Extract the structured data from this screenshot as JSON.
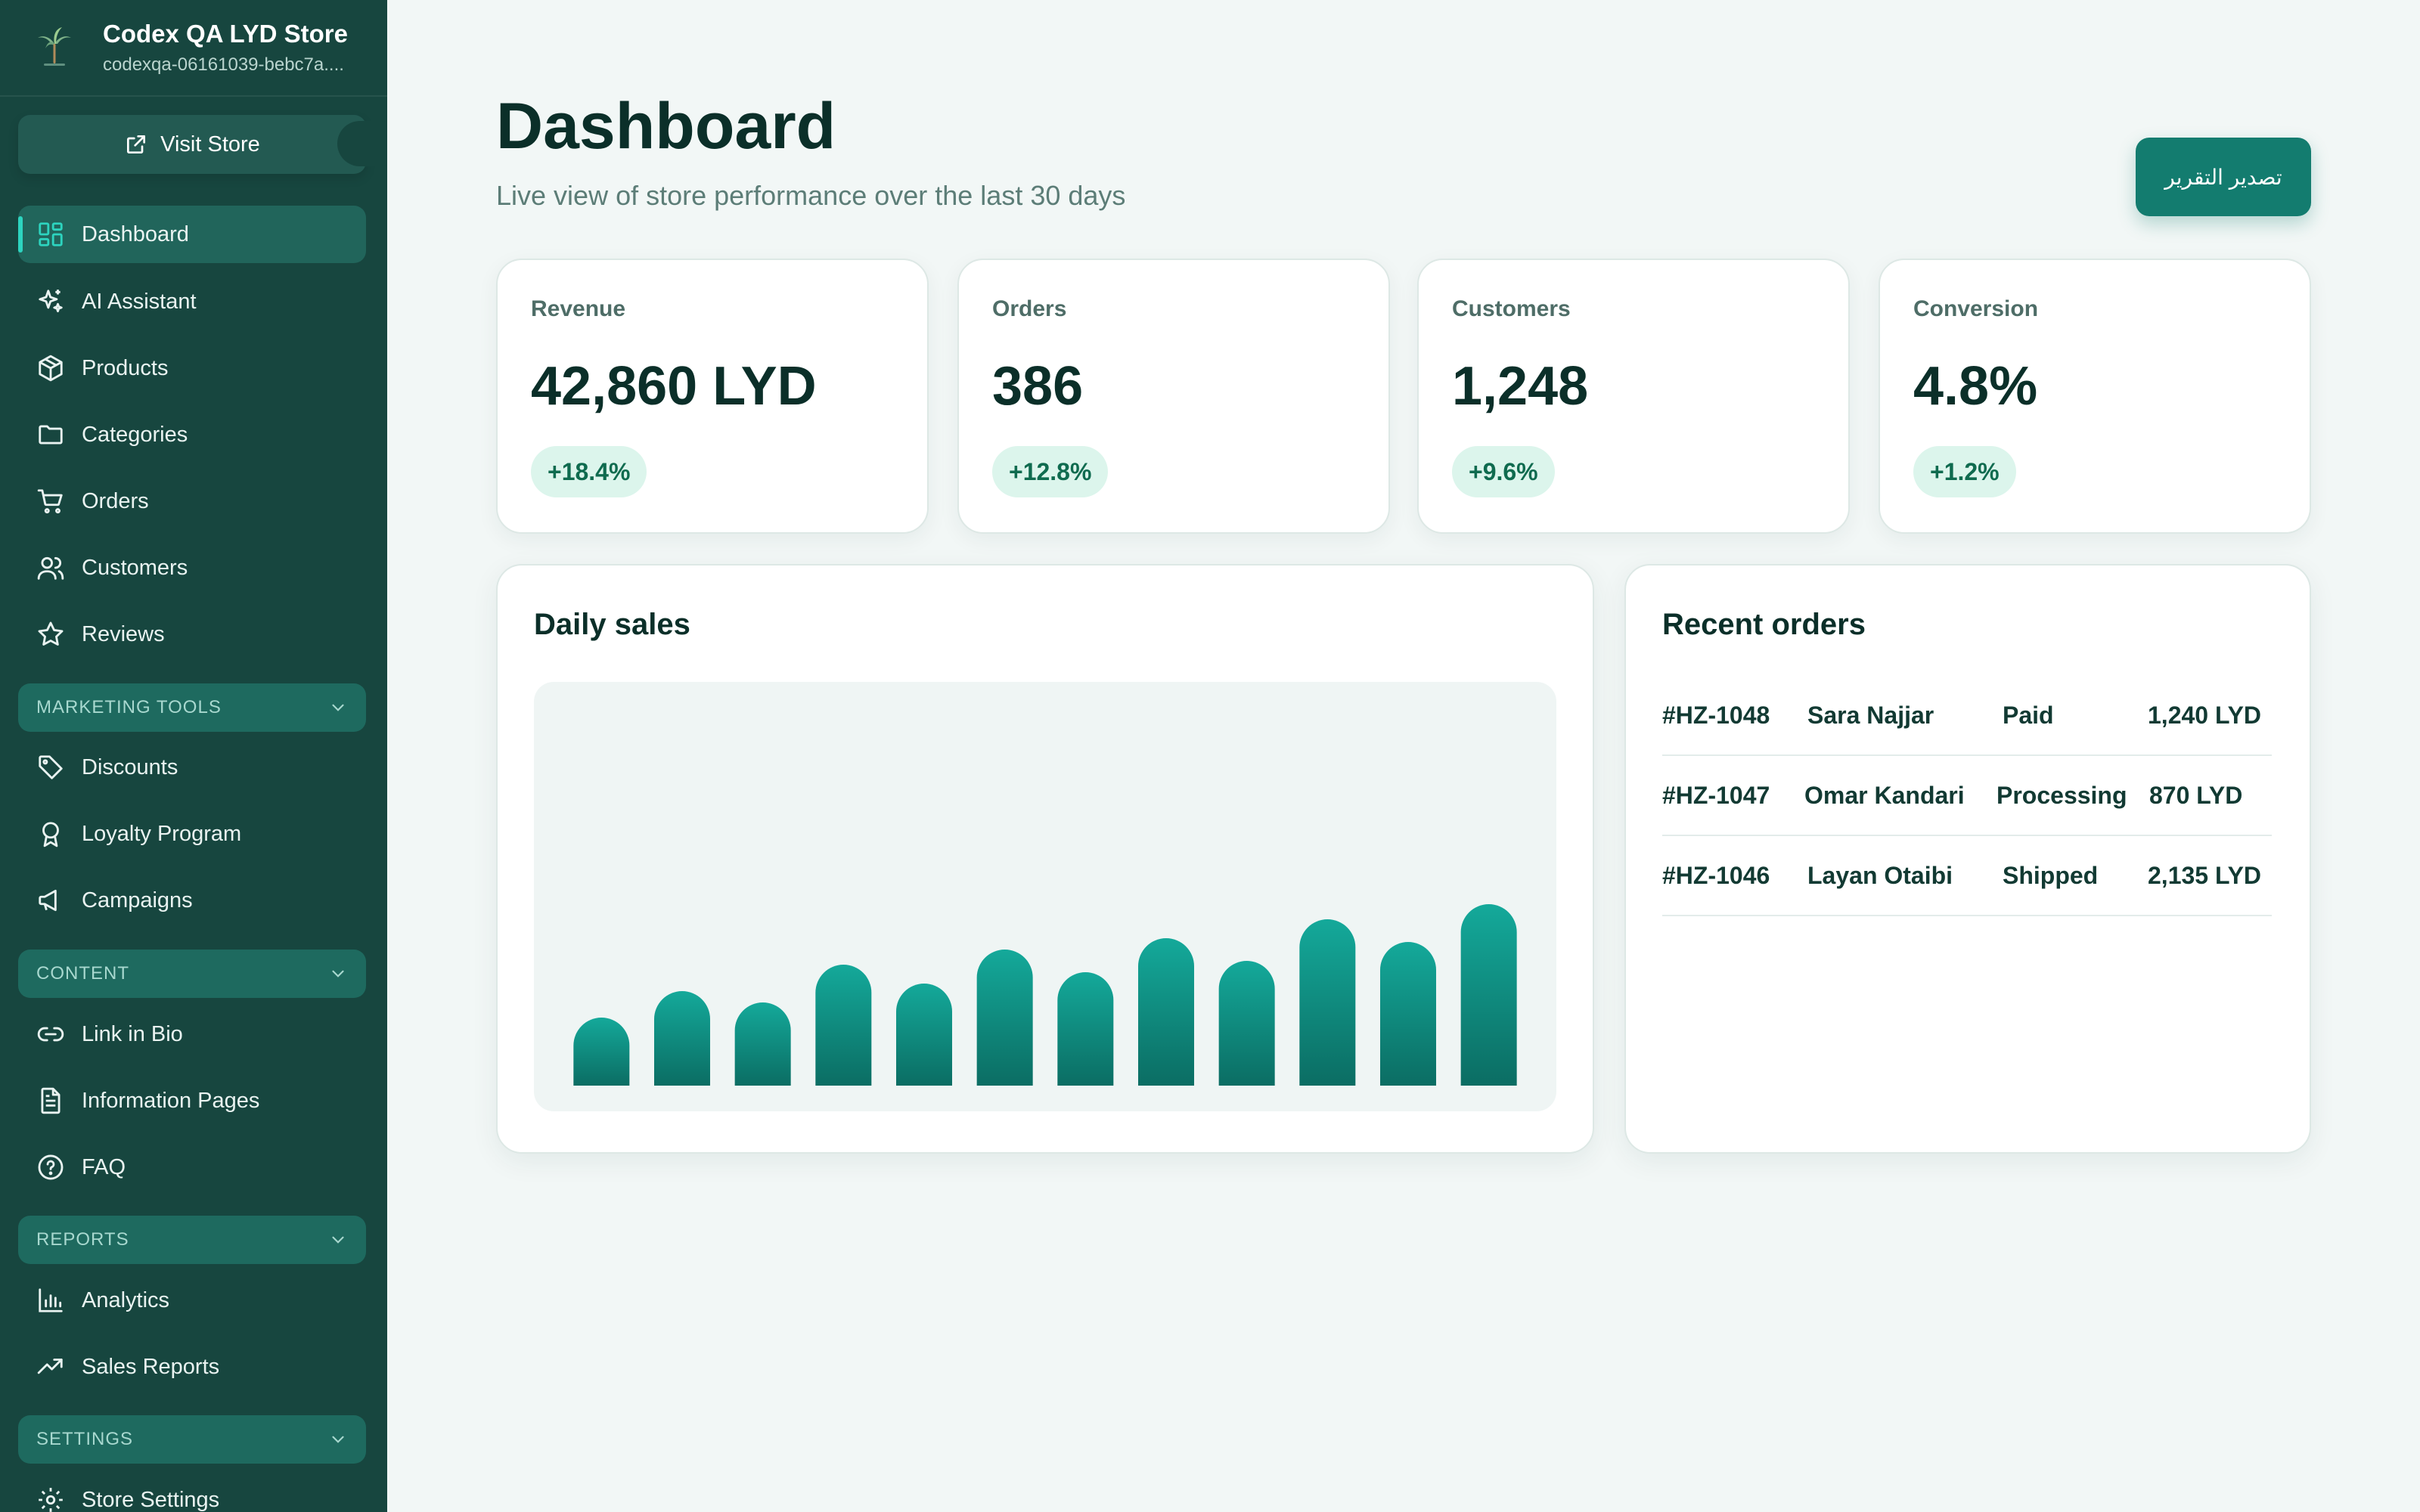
{
  "store": {
    "name": "Codex QA LYD Store",
    "slug": "codexqa-06161039-bebc7a...."
  },
  "sidebar": {
    "visit_store_label": "Visit Store",
    "primary": [
      {
        "label": "Dashboard",
        "icon": "grid-icon",
        "active": true
      },
      {
        "label": "AI Assistant",
        "icon": "sparkles-icon"
      },
      {
        "label": "Products",
        "icon": "box-icon"
      },
      {
        "label": "Categories",
        "icon": "folder-icon"
      },
      {
        "label": "Orders",
        "icon": "cart-icon"
      },
      {
        "label": "Customers",
        "icon": "users-icon"
      },
      {
        "label": "Reviews",
        "icon": "star-icon"
      }
    ],
    "sections": [
      {
        "title": "MARKETING TOOLS",
        "items": [
          {
            "label": "Discounts",
            "icon": "tag-icon"
          },
          {
            "label": "Loyalty Program",
            "icon": "award-icon"
          },
          {
            "label": "Campaigns",
            "icon": "megaphone-icon"
          }
        ]
      },
      {
        "title": "CONTENT",
        "items": [
          {
            "label": "Link in Bio",
            "icon": "link-icon"
          },
          {
            "label": "Information Pages",
            "icon": "document-icon"
          },
          {
            "label": "FAQ",
            "icon": "help-circle-icon"
          }
        ]
      },
      {
        "title": "REPORTS",
        "items": [
          {
            "label": "Analytics",
            "icon": "bar-chart-icon"
          },
          {
            "label": "Sales Reports",
            "icon": "trend-up-icon"
          }
        ]
      },
      {
        "title": "SETTINGS",
        "items": [
          {
            "label": "Store Settings",
            "icon": "gear-icon"
          }
        ]
      }
    ]
  },
  "header": {
    "title": "Dashboard",
    "subtitle": "Live view of store performance over the last 30 days",
    "export_label": "تصدير التقرير"
  },
  "kpis": [
    {
      "label": "Revenue",
      "value": "42,860 LYD",
      "delta": "+18.4%"
    },
    {
      "label": "Orders",
      "value": "386",
      "delta": "+12.8%"
    },
    {
      "label": "Customers",
      "value": "1,248",
      "delta": "+9.6%"
    },
    {
      "label": "Conversion",
      "value": "4.8%",
      "delta": "+1.2%"
    }
  ],
  "daily_sales": {
    "title": "Daily sales"
  },
  "chart_data": {
    "type": "bar",
    "title": "Daily sales",
    "values": [
      18,
      25,
      22,
      32,
      27,
      36,
      30,
      39,
      33,
      44,
      38,
      48
    ],
    "ylim": [
      0,
      100
    ],
    "grid": false,
    "colors": {
      "top": "#14a99a",
      "bottom": "#0b6d63"
    }
  },
  "recent_orders": {
    "title": "Recent orders",
    "rows": [
      {
        "id": "#HZ-1048",
        "customer": "Sara Najjar",
        "status": "Paid",
        "amount": "1,240 LYD"
      },
      {
        "id": "#HZ-1047",
        "customer": "Omar Kandari",
        "status": "Processing",
        "amount": "870 LYD"
      },
      {
        "id": "#HZ-1046",
        "customer": "Layan Otaibi",
        "status": "Shipped",
        "amount": "2,135 LYD"
      }
    ]
  },
  "colors": {
    "sidebar": "#17463f",
    "accent": "#137c6f",
    "active_indicator": "#2dd4bf",
    "delta_bg": "#dcf5ec"
  }
}
